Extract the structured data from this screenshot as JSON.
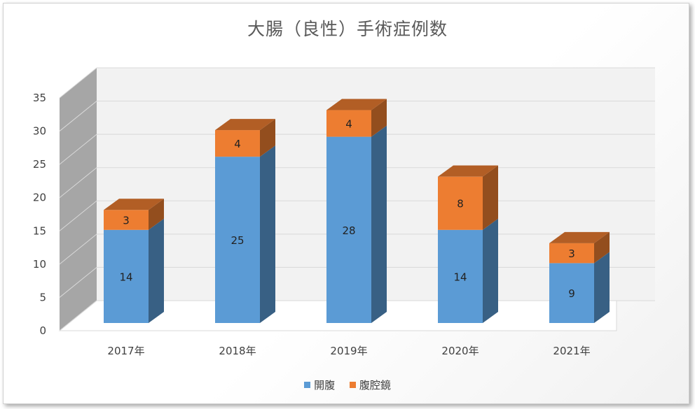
{
  "chart_data": {
    "type": "bar",
    "stacked": true,
    "three_d": true,
    "title": "大腸（良性）手術症例数",
    "categories": [
      "2017年",
      "2018年",
      "2019年",
      "2020年",
      "2021年"
    ],
    "series": [
      {
        "name": "開腹",
        "values": [
          14,
          25,
          28,
          14,
          9
        ],
        "color": "#5b9bd5"
      },
      {
        "name": "腹腔鏡",
        "values": [
          3,
          4,
          4,
          8,
          3
        ],
        "color": "#ed7d31"
      }
    ],
    "ylim": [
      0,
      35
    ],
    "yticks": [
      0,
      5,
      10,
      15,
      20,
      25,
      30,
      35
    ],
    "grid": true,
    "legend": "bottom"
  }
}
